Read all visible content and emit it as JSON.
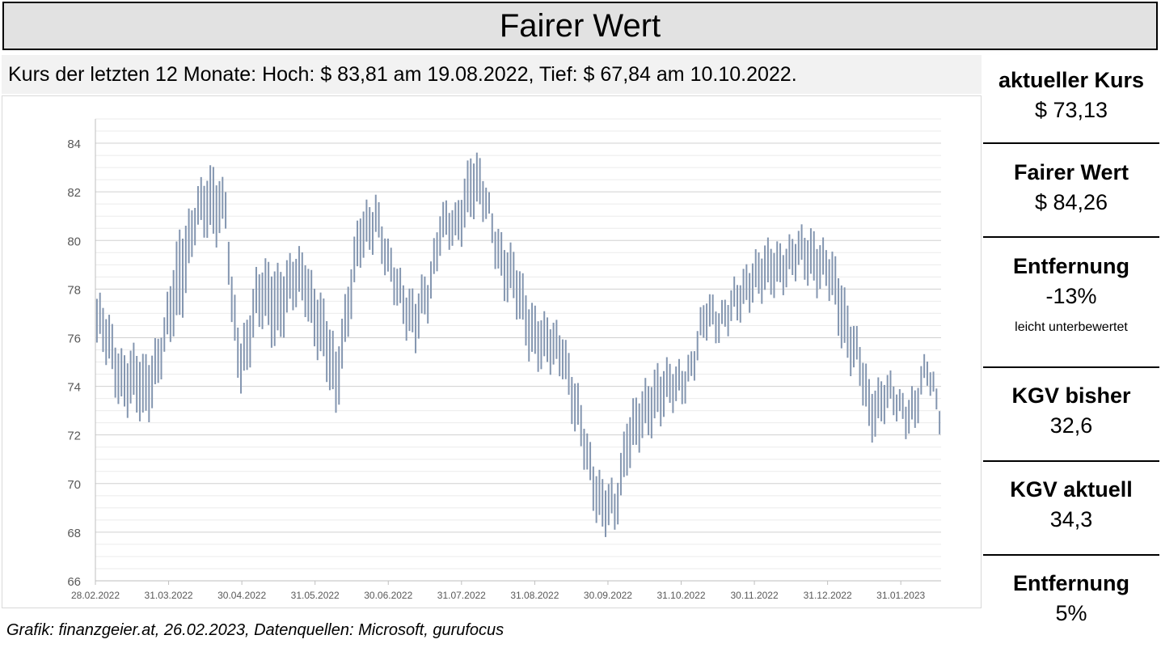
{
  "header": {
    "title": "Fairer Wert",
    "subtitle": "Kurs der letzten 12 Monate: Hoch: $ 83,81 am 19.08.2022, Tief: $ 67,84 am 10.10.2022."
  },
  "footer": {
    "source": "Grafik: finanzgeier.at, 26.02.2023, Datenquellen: Microsoft, gurufocus"
  },
  "side": {
    "current_price": {
      "label": "aktueller Kurs",
      "value": "$ 73,13"
    },
    "fair_value": {
      "label": "Fairer Wert",
      "value": "$ 84,26"
    },
    "distance1": {
      "label": "Entfernung",
      "value": "-13%",
      "note": "leicht unterbewertet"
    },
    "pe_past": {
      "label": "KGV bisher",
      "value": "32,6"
    },
    "pe_current": {
      "label": "KGV aktuell",
      "value": "34,3"
    },
    "distance2": {
      "label": "Entfernung",
      "value": "5%"
    }
  },
  "chart_data": {
    "type": "bar",
    "subtype": "high-low",
    "color": "#8496b0",
    "grid": true,
    "ylim": [
      66,
      85
    ],
    "yticks": [
      66,
      68,
      70,
      72,
      74,
      76,
      78,
      80,
      82,
      84
    ],
    "xticks": [
      "28.02.2022",
      "31.03.2022",
      "30.04.2022",
      "31.05.2022",
      "30.06.2022",
      "31.07.2022",
      "31.08.2022",
      "30.09.2022",
      "31.10.2022",
      "30.11.2022",
      "31.12.2022",
      "31.01.2023"
    ],
    "month_anchors": [
      {
        "i": 0,
        "low": 75.8,
        "high": 77.6
      },
      {
        "i": 8,
        "low": 73.5,
        "high": 75.5
      },
      {
        "i": 15,
        "low": 72.5,
        "high": 75.0
      },
      {
        "i": 22,
        "low": 75.0,
        "high": 76.5
      },
      {
        "i": 27,
        "low": 77.0,
        "high": 80.5
      },
      {
        "i": 32,
        "low": 80.0,
        "high": 81.5
      },
      {
        "i": 38,
        "low": 80.5,
        "high": 83.2
      },
      {
        "i": 42,
        "low": 80.5,
        "high": 82.0
      },
      {
        "i": 44,
        "low": 76.0,
        "high": 78.0
      },
      {
        "i": 47,
        "low": 74.0,
        "high": 76.0
      },
      {
        "i": 52,
        "low": 76.5,
        "high": 78.5
      },
      {
        "i": 58,
        "low": 76.0,
        "high": 79.0
      },
      {
        "i": 63,
        "low": 77.0,
        "high": 79.0
      },
      {
        "i": 68,
        "low": 77.5,
        "high": 79.5
      },
      {
        "i": 73,
        "low": 75.0,
        "high": 77.5
      },
      {
        "i": 78,
        "low": 73.0,
        "high": 75.5
      },
      {
        "i": 80,
        "low": 75.0,
        "high": 77.0
      },
      {
        "i": 86,
        "low": 79.0,
        "high": 81.0
      },
      {
        "i": 91,
        "low": 80.5,
        "high": 82.0
      },
      {
        "i": 95,
        "low": 78.0,
        "high": 79.5
      },
      {
        "i": 100,
        "low": 77.0,
        "high": 78.5
      },
      {
        "i": 104,
        "low": 75.5,
        "high": 77.5
      },
      {
        "i": 108,
        "low": 77.0,
        "high": 78.5
      },
      {
        "i": 112,
        "low": 80.0,
        "high": 81.5
      },
      {
        "i": 117,
        "low": 79.5,
        "high": 81.0
      },
      {
        "i": 122,
        "low": 81.5,
        "high": 83.8
      },
      {
        "i": 125,
        "low": 81.0,
        "high": 83.0
      },
      {
        "i": 128,
        "low": 80.5,
        "high": 81.5
      },
      {
        "i": 133,
        "low": 78.0,
        "high": 80.0
      },
      {
        "i": 140,
        "low": 76.0,
        "high": 78.0
      },
      {
        "i": 146,
        "low": 74.5,
        "high": 76.5
      },
      {
        "i": 152,
        "low": 75.0,
        "high": 76.5
      },
      {
        "i": 156,
        "low": 72.0,
        "high": 74.0
      },
      {
        "i": 160,
        "low": 70.5,
        "high": 72.0
      },
      {
        "i": 165,
        "low": 68.0,
        "high": 70.0
      },
      {
        "i": 169,
        "low": 68.0,
        "high": 69.5
      },
      {
        "i": 173,
        "low": 71.0,
        "high": 73.0
      },
      {
        "i": 178,
        "low": 71.5,
        "high": 73.5
      },
      {
        "i": 183,
        "low": 73.0,
        "high": 75.0
      },
      {
        "i": 189,
        "low": 73.0,
        "high": 74.5
      },
      {
        "i": 194,
        "low": 74.5,
        "high": 75.5
      },
      {
        "i": 199,
        "low": 76.0,
        "high": 77.5
      },
      {
        "i": 204,
        "low": 76.5,
        "high": 77.5
      },
      {
        "i": 209,
        "low": 76.5,
        "high": 78.0
      },
      {
        "i": 214,
        "low": 78.0,
        "high": 79.5
      },
      {
        "i": 219,
        "low": 77.5,
        "high": 79.5
      },
      {
        "i": 224,
        "low": 78.5,
        "high": 80.0
      },
      {
        "i": 229,
        "low": 78.5,
        "high": 80.0
      },
      {
        "i": 234,
        "low": 78.5,
        "high": 80.5
      },
      {
        "i": 238,
        "low": 78.0,
        "high": 79.5
      },
      {
        "i": 243,
        "low": 76.0,
        "high": 78.5
      },
      {
        "i": 248,
        "low": 74.5,
        "high": 76.0
      },
      {
        "i": 252,
        "low": 72.0,
        "high": 74.0
      },
      {
        "i": 257,
        "low": 73.0,
        "high": 74.5
      },
      {
        "i": 262,
        "low": 72.5,
        "high": 73.5
      },
      {
        "i": 267,
        "low": 72.5,
        "high": 74.0
      },
      {
        "i": 271,
        "low": 74.0,
        "high": 75.0
      },
      {
        "i": 275,
        "low": 72.8,
        "high": 73.6
      }
    ]
  }
}
